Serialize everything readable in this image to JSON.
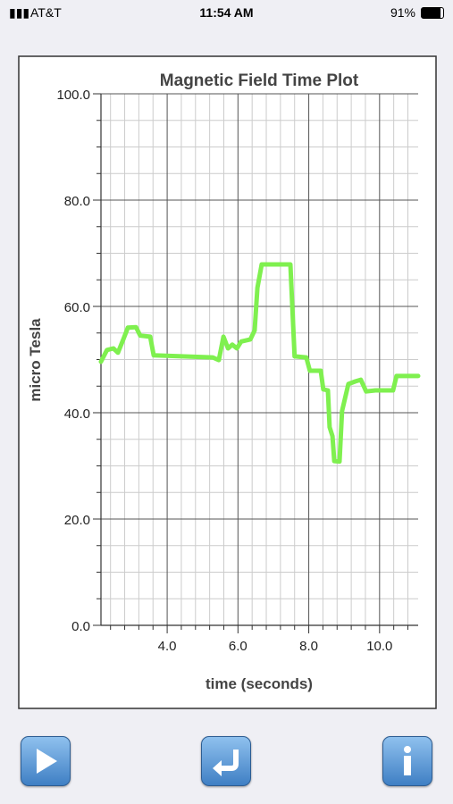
{
  "status_bar": {
    "carrier": "AT&T",
    "time": "11:54 AM",
    "battery": "91%"
  },
  "chart_data": {
    "type": "line",
    "title": "Magnetic Field Time Plot",
    "x_label": "time (seconds)",
    "y_label": "micro Tesla",
    "xlim": [
      2.13,
      11.09
    ],
    "ylim": [
      0,
      100
    ],
    "xticks": [
      {
        "value": 4,
        "label": "4.0"
      },
      {
        "value": 6,
        "label": "6.0"
      },
      {
        "value": 8,
        "label": "8.0"
      },
      {
        "value": 10,
        "label": "10.0"
      }
    ],
    "yticks": [
      {
        "value": 0,
        "label": "0.0"
      },
      {
        "value": 20,
        "label": "20.0"
      },
      {
        "value": 40,
        "label": "40.0"
      },
      {
        "value": 60,
        "label": "60.0"
      },
      {
        "value": 80,
        "label": "80.0"
      },
      {
        "value": 100,
        "label": "100.0"
      }
    ],
    "minor_xticks": [
      2.4,
      2.8,
      3.2,
      3.6,
      4.4,
      4.8,
      5.2,
      5.6,
      6.4,
      6.8,
      7.2,
      7.6,
      8.4,
      8.8,
      9.2,
      9.6,
      10.4,
      10.8
    ],
    "minor_yticks": [
      5,
      10,
      15,
      25,
      30,
      35,
      45,
      50,
      55,
      65,
      70,
      75,
      85,
      90,
      95
    ],
    "grid": true,
    "series": [
      {
        "color": "#7ff04f",
        "x": [
          2.13,
          2.3,
          2.48,
          2.61,
          2.76,
          2.89,
          3.12,
          3.24,
          3.52,
          3.62,
          5.29,
          5.46,
          5.59,
          5.72,
          5.84,
          5.97,
          6.09,
          6.35,
          6.47,
          6.55,
          6.67,
          7.48,
          7.6,
          7.93,
          8.03,
          8.34,
          8.41,
          8.54,
          8.59,
          8.67,
          8.72,
          8.87,
          8.94,
          9.12,
          9.32,
          9.47,
          9.62,
          9.88,
          10.38,
          10.48,
          11.09
        ],
        "values": [
          49.6,
          51.8,
          52.1,
          51.3,
          53.8,
          56,
          56.1,
          54.5,
          54.3,
          50.8,
          50.4,
          49.9,
          54.3,
          52.1,
          52.8,
          52.1,
          53.4,
          53.8,
          55.5,
          63.5,
          67.9,
          67.9,
          50.6,
          50.4,
          47.9,
          47.9,
          44.4,
          44.2,
          37.3,
          35.6,
          30.9,
          30.8,
          40.3,
          45.4,
          45.9,
          46.2,
          44,
          44.2,
          44.2,
          46.9,
          46.9
        ]
      }
    ]
  }
}
